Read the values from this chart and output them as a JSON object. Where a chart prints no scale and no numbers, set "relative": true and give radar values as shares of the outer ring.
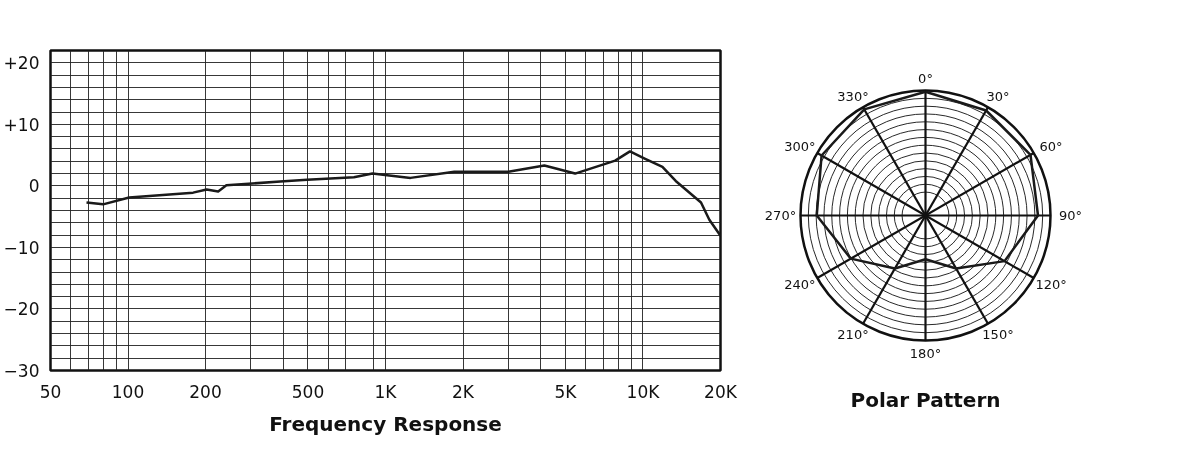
{
  "chart_data": [
    {
      "type": "line",
      "title": "Frequency Response",
      "log": "x",
      "grid": true,
      "marker": "none",
      "line_style": "solid",
      "xlim": [
        50,
        20000
      ],
      "ylim": [
        -30,
        22
      ],
      "xticks": [
        50,
        {
          "value": 60,
          "label": null
        },
        {
          "value": 70,
          "label": null
        },
        {
          "value": 80,
          "label": null
        },
        {
          "value": 90,
          "label": null
        },
        100,
        200,
        {
          "value": 300,
          "label": null
        },
        {
          "value": 400,
          "label": null
        },
        500,
        {
          "value": 600,
          "label": null
        },
        {
          "value": 700,
          "label": null
        },
        {
          "value": 900,
          "label": null
        },
        {
          "value": 1000,
          "label": "1K"
        },
        {
          "value": 2000,
          "label": "2K"
        },
        {
          "value": 3000,
          "label": null
        },
        {
          "value": 4000,
          "label": null
        },
        {
          "value": 5000,
          "label": "5K"
        },
        {
          "value": 6000,
          "label": null
        },
        {
          "value": 7000,
          "label": null
        },
        {
          "value": 8000,
          "label": null
        },
        {
          "value": 9000,
          "label": null
        },
        {
          "value": 10000,
          "label": "10K"
        },
        {
          "value": 20000,
          "label": "20K"
        }
      ],
      "yticks": [
        {
          "value": -30,
          "label": "−30"
        },
        {
          "value": -28,
          "label": null
        },
        {
          "value": -26,
          "label": null
        },
        {
          "value": -24,
          "label": null
        },
        {
          "value": -22,
          "label": null
        },
        {
          "value": -20,
          "label": "−20"
        },
        {
          "value": -18,
          "label": null
        },
        {
          "value": -16,
          "label": null
        },
        {
          "value": -14,
          "label": null
        },
        {
          "value": -12,
          "label": null
        },
        {
          "value": -10,
          "label": "−10"
        },
        {
          "value": -8,
          "label": null
        },
        {
          "value": -6,
          "label": null
        },
        {
          "value": -4,
          "label": null
        },
        {
          "value": -2,
          "label": null
        },
        0,
        {
          "value": 2,
          "label": null
        },
        {
          "value": 4,
          "label": null
        },
        {
          "value": 6,
          "label": null
        },
        {
          "value": 8,
          "label": null
        },
        {
          "value": 10,
          "label": "+10"
        },
        {
          "value": 12,
          "label": null
        },
        {
          "value": 14,
          "label": null
        },
        {
          "value": 16,
          "label": null
        },
        {
          "value": 18,
          "label": null
        },
        {
          "value": 20,
          "label": "+20"
        }
      ],
      "series": [
        {
          "color": "#1a1a1a",
          "x": [
            69,
            80,
            101,
            179,
            202,
            224,
            241,
            390,
            496,
            754,
            890,
            1250,
            1850,
            3000,
            4140,
            5450,
            7800,
            8900,
            10200,
            11900,
            13400,
            16800,
            18100,
            20000
          ],
          "values": [
            -2.7,
            -3.0,
            -1.9,
            -1.1,
            -0.6,
            -0.9,
            0.1,
            0.7,
            1.0,
            1.4,
            2.0,
            1.3,
            2.3,
            2.3,
            3.3,
            2.0,
            4.1,
            5.6,
            4.4,
            3.1,
            0.8,
            -2.7,
            -5.5,
            -8.1
          ]
        }
      ]
    },
    {
      "type": "radar",
      "title": "Polar Pattern",
      "relative": true,
      "grid": true,
      "marker": "none",
      "line_style": "solid",
      "categories": [
        "0°",
        "30°",
        "60°",
        "90°",
        "120°",
        "150°",
        "180°",
        "210°",
        "240°",
        "270°",
        "300°",
        "330°"
      ],
      "series": [
        {
          "color": "#1a1a1a",
          "values": [
            0.99,
            0.97,
            0.97,
            0.9,
            0.73,
            0.49,
            0.35,
            0.49,
            0.69,
            0.87,
            0.96,
            0.98
          ]
        }
      ]
    }
  ]
}
